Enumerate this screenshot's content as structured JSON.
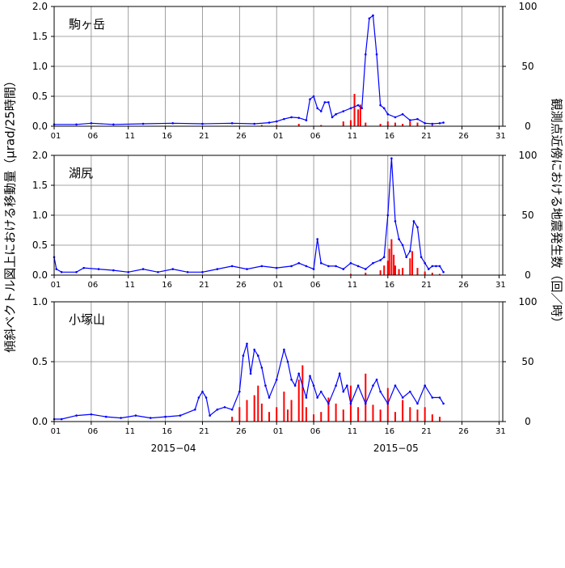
{
  "figure": {
    "left_axis_label": "傾斜ベクトル図上における移動量（μrad/25時間）",
    "right_axis_label": "観測点近傍における地震発生数（回／時）",
    "month_labels": [
      {
        "text": "2015−04",
        "day_index": 15
      },
      {
        "text": "2015−05",
        "day_index": 45
      }
    ],
    "x_tick_labels": [
      "01",
      "06",
      "11",
      "16",
      "21",
      "26",
      "01",
      "06",
      "11",
      "16",
      "21",
      "26",
      "31"
    ],
    "x_tick_day_index": [
      0,
      5,
      10,
      15,
      20,
      25,
      30,
      35,
      40,
      45,
      50,
      55,
      60
    ],
    "x_range_days": [
      0,
      60.5
    ],
    "tilt_color": "#0000ff",
    "quake_color": "#ff0000"
  },
  "chart_data": [
    {
      "type": "line",
      "title": "駒ヶ岳",
      "ylim": [
        0,
        2.0
      ],
      "y_ticks": [
        "0.0",
        "0.5",
        "1.0",
        "1.5",
        "2.0"
      ],
      "y2lim": [
        0,
        100
      ],
      "y2_ticks": [
        "0",
        "50",
        "100"
      ],
      "series": [
        {
          "axis": "left",
          "kind": "line",
          "x": [
            0,
            3,
            5,
            8,
            12,
            16,
            20,
            24,
            27,
            29,
            30,
            31,
            32,
            33,
            34,
            34.5,
            35,
            35.5,
            36,
            36.5,
            37,
            37.5,
            38,
            39,
            40,
            41,
            41.5,
            42,
            42.5,
            43,
            43.5,
            44,
            44.5,
            45,
            46,
            47,
            48,
            49,
            50,
            51,
            52,
            52.5
          ],
          "y": [
            0.03,
            0.03,
            0.05,
            0.03,
            0.04,
            0.05,
            0.04,
            0.05,
            0.04,
            0.06,
            0.08,
            0.12,
            0.15,
            0.14,
            0.1,
            0.45,
            0.5,
            0.3,
            0.25,
            0.4,
            0.4,
            0.15,
            0.2,
            0.25,
            0.3,
            0.35,
            0.3,
            1.2,
            1.8,
            1.85,
            1.2,
            0.35,
            0.3,
            0.2,
            0.15,
            0.2,
            0.1,
            0.12,
            0.05,
            0.04,
            0.05,
            0.06
          ]
        },
        {
          "axis": "right",
          "kind": "bar",
          "x": [
            28,
            30,
            33,
            36,
            39,
            40,
            40.5,
            41,
            41.3,
            42,
            44,
            45,
            46,
            47,
            48,
            49,
            51
          ],
          "y": [
            1,
            1,
            2,
            1,
            4,
            5,
            27,
            14,
            18,
            3,
            2,
            4,
            3,
            2,
            4,
            3,
            1
          ]
        }
      ]
    },
    {
      "type": "line",
      "title": "湖尻",
      "ylim": [
        0,
        2.0
      ],
      "y_ticks": [
        "0.0",
        "0.5",
        "1.0",
        "1.5",
        "2.0"
      ],
      "y2lim": [
        0,
        100
      ],
      "y2_ticks": [
        "0",
        "50",
        "100"
      ],
      "series": [
        {
          "axis": "left",
          "kind": "line",
          "x": [
            0,
            0.3,
            1,
            3,
            4,
            6,
            8,
            10,
            12,
            14,
            16,
            18,
            20,
            22,
            24,
            26,
            28,
            30,
            32,
            33,
            34,
            35,
            35.5,
            36,
            37,
            38,
            39,
            40,
            41,
            42,
            43,
            44,
            44.5,
            45,
            45.5,
            46,
            46.5,
            47,
            47.5,
            48,
            48.5,
            49,
            49.5,
            50,
            50.5,
            51,
            51.5,
            52,
            52.5
          ],
          "y": [
            0.3,
            0.1,
            0.05,
            0.05,
            0.12,
            0.1,
            0.08,
            0.05,
            0.1,
            0.05,
            0.1,
            0.05,
            0.05,
            0.1,
            0.15,
            0.1,
            0.15,
            0.12,
            0.15,
            0.2,
            0.15,
            0.1,
            0.6,
            0.2,
            0.15,
            0.15,
            0.1,
            0.2,
            0.15,
            0.1,
            0.2,
            0.25,
            0.3,
            1.0,
            1.95,
            0.9,
            0.6,
            0.5,
            0.3,
            0.4,
            0.9,
            0.8,
            0.3,
            0.2,
            0.1,
            0.15,
            0.15,
            0.15,
            0.05
          ]
        },
        {
          "axis": "right",
          "kind": "bar",
          "x": [
            40,
            42,
            44,
            44.5,
            45,
            45.2,
            45.5,
            45.8,
            46,
            46.5,
            47,
            48,
            48.3,
            49,
            50,
            51,
            52
          ],
          "y": [
            1,
            2,
            4,
            8,
            12,
            22,
            30,
            17,
            8,
            5,
            6,
            14,
            20,
            6,
            3,
            2,
            1
          ]
        }
      ]
    },
    {
      "type": "line",
      "title": "小塚山",
      "ylim": [
        0,
        1.0
      ],
      "y_ticks": [
        "0.0",
        "0.5",
        "1.0"
      ],
      "y2lim": [
        0,
        100
      ],
      "y2_ticks": [
        "0",
        "50",
        "100"
      ],
      "series": [
        {
          "axis": "left",
          "kind": "line",
          "x": [
            0,
            1,
            3,
            5,
            7,
            9,
            11,
            13,
            15,
            17,
            19,
            19.5,
            20,
            20.5,
            21,
            22,
            23,
            24,
            25,
            25.5,
            26,
            26.5,
            27,
            27.5,
            28,
            28.5,
            29,
            30,
            31,
            31.5,
            32,
            32.5,
            33,
            34,
            34.5,
            35,
            35.5,
            36,
            37,
            38,
            38.5,
            39,
            39.5,
            40,
            41,
            42,
            43,
            43.5,
            44,
            45,
            46,
            47,
            48,
            49,
            50,
            51,
            52,
            52.5
          ],
          "y": [
            0.02,
            0.02,
            0.05,
            0.06,
            0.04,
            0.03,
            0.05,
            0.03,
            0.04,
            0.05,
            0.1,
            0.2,
            0.25,
            0.2,
            0.05,
            0.1,
            0.12,
            0.1,
            0.25,
            0.55,
            0.65,
            0.4,
            0.6,
            0.55,
            0.45,
            0.3,
            0.2,
            0.35,
            0.6,
            0.5,
            0.35,
            0.3,
            0.4,
            0.2,
            0.38,
            0.3,
            0.2,
            0.25,
            0.15,
            0.3,
            0.4,
            0.25,
            0.3,
            0.15,
            0.3,
            0.15,
            0.3,
            0.35,
            0.25,
            0.15,
            0.3,
            0.2,
            0.25,
            0.15,
            0.3,
            0.2,
            0.2,
            0.15
          ]
        },
        {
          "axis": "right",
          "kind": "bar",
          "x": [
            24,
            25,
            26,
            27,
            27.5,
            28,
            29,
            30,
            31,
            31.5,
            32,
            33,
            33.5,
            34,
            35,
            36,
            37,
            38,
            39,
            40,
            41,
            42,
            43,
            44,
            45,
            46,
            47,
            48,
            49,
            50,
            51,
            52
          ],
          "y": [
            4,
            12,
            18,
            22,
            30,
            15,
            8,
            12,
            25,
            10,
            18,
            35,
            47,
            12,
            6,
            8,
            20,
            15,
            10,
            30,
            12,
            40,
            14,
            10,
            28,
            8,
            18,
            12,
            10,
            12,
            6,
            4
          ]
        }
      ]
    }
  ]
}
